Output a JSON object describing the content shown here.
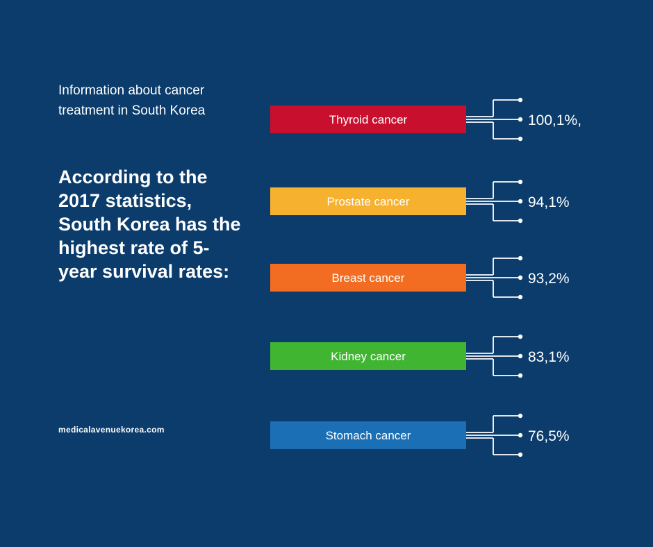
{
  "intro": {
    "line1": "Information about cancer",
    "line2": "treatment in South Korea"
  },
  "headline": "According to the 2017 statistics, South Korea has the highest rate of 5-year survival rates:",
  "site": "medicalavenuekorea.com",
  "chart_data": {
    "type": "bar",
    "title": "",
    "categories": [
      "Thyroid cancer",
      "Prostate cancer",
      "Breast cancer",
      "Kidney cancer",
      "Stomach cancer"
    ],
    "values": [
      100.1,
      94.1,
      93.2,
      83.1,
      76.5
    ],
    "value_labels": [
      "100,1%,",
      "94,1%",
      "93,2%",
      "83,1%",
      "76,5%"
    ],
    "colors": [
      "#c8102e",
      "#f6b12f",
      "#f26d21",
      "#3fb531",
      "#1a6fb5"
    ],
    "legend": "none",
    "grid": false
  }
}
